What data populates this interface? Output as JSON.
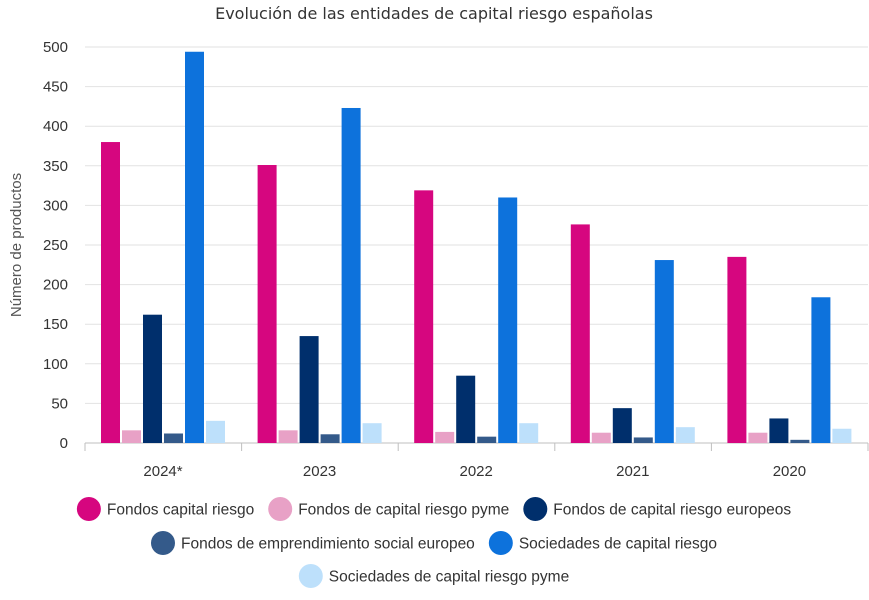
{
  "chart_data": {
    "type": "bar",
    "title": "Evolución de las entidades de capital riesgo españolas",
    "xlabel": "",
    "ylabel": "Número de productos",
    "ylim": [
      0,
      500
    ],
    "yticks": [
      0,
      50,
      100,
      150,
      200,
      250,
      300,
      350,
      400,
      450,
      500
    ],
    "grid": true,
    "legend_position": "bottom",
    "categories": [
      "2024*",
      "2023",
      "2022",
      "2021",
      "2020"
    ],
    "series": [
      {
        "name": "Fondos capital riesgo",
        "color": "#d6067f",
        "values": [
          380,
          351,
          319,
          276,
          235
        ]
      },
      {
        "name": "Fondos de capital riesgo pyme",
        "color": "#e8a1c6",
        "values": [
          16,
          16,
          14,
          13,
          13
        ]
      },
      {
        "name": "Fondos de capital riesgo europeos",
        "color": "#002f6c",
        "values": [
          162,
          135,
          85,
          44,
          31
        ]
      },
      {
        "name": "Fondos de emprendimiento social europeo",
        "color": "#345a8a",
        "values": [
          12,
          11,
          8,
          7,
          4
        ]
      },
      {
        "name": "Sociedades de capital riesgo",
        "color": "#0d72dc",
        "values": [
          494,
          423,
          310,
          231,
          184
        ]
      },
      {
        "name": "Sociedades de capital riesgo pyme",
        "color": "#bde0fb",
        "values": [
          28,
          25,
          25,
          20,
          18
        ]
      }
    ]
  }
}
